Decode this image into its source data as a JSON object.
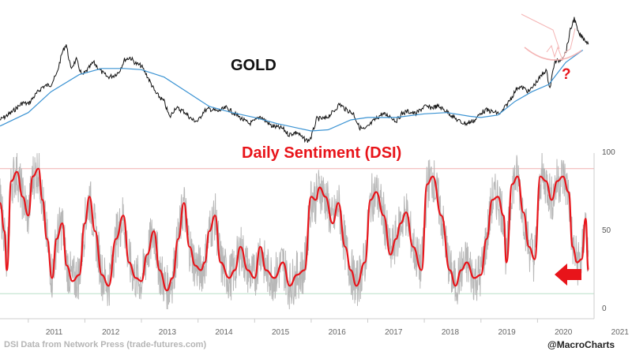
{
  "chart_data": [
    {
      "type": "line",
      "title": "GOLD",
      "x_range": [
        2010.5,
        2021.0
      ],
      "series": [
        {
          "x": [
            2010.5,
            2010.7,
            2010.9,
            2011.0,
            2011.1,
            2011.25,
            2011.4,
            2011.5,
            2011.6,
            2011.67,
            2011.75,
            2011.85,
            2011.95,
            2012.05,
            2012.15,
            2012.3,
            2012.4,
            2012.5,
            2012.6,
            2012.7,
            2012.8,
            2012.9,
            2013.0,
            2013.1,
            2013.25,
            2013.4,
            2013.5,
            2013.6,
            2013.75,
            2013.9,
            2014.0,
            2014.1,
            2014.2,
            2014.35,
            2014.5,
            2014.65,
            2014.8,
            2014.9,
            2015.0,
            2015.1,
            2015.3,
            2015.5,
            2015.6,
            2015.75,
            2015.85,
            2015.95,
            2016.0,
            2016.1,
            2016.25,
            2016.4,
            2016.5,
            2016.6,
            2016.75,
            2016.85,
            2016.95,
            2017.1,
            2017.25,
            2017.4,
            2017.5,
            2017.6,
            2017.7,
            2017.85,
            2018.0,
            2018.1,
            2018.25,
            2018.4,
            2018.55,
            2018.65,
            2018.75,
            2018.9,
            2019.0,
            2019.1,
            2019.25,
            2019.35,
            2019.45,
            2019.55,
            2019.65,
            2019.75,
            2019.85,
            2019.95,
            2020.05,
            2020.15,
            2020.22,
            2020.3,
            2020.4,
            2020.5,
            2020.58,
            2020.65,
            2020.72,
            2020.8,
            2020.85,
            2020.9
          ],
          "y": [
            1230,
            1290,
            1370,
            1360,
            1420,
            1500,
            1520,
            1600,
            1780,
            1850,
            1650,
            1720,
            1590,
            1640,
            1700,
            1620,
            1580,
            1590,
            1620,
            1720,
            1740,
            1690,
            1670,
            1590,
            1450,
            1380,
            1250,
            1330,
            1300,
            1230,
            1220,
            1300,
            1320,
            1300,
            1330,
            1280,
            1230,
            1200,
            1220,
            1260,
            1180,
            1160,
            1110,
            1130,
            1080,
            1060,
            1090,
            1240,
            1240,
            1300,
            1360,
            1320,
            1280,
            1170,
            1150,
            1220,
            1280,
            1260,
            1220,
            1280,
            1300,
            1280,
            1340,
            1330,
            1340,
            1300,
            1240,
            1210,
            1200,
            1230,
            1290,
            1310,
            1290,
            1280,
            1350,
            1420,
            1500,
            1490,
            1460,
            1520,
            1580,
            1640,
            1490,
            1700,
            1720,
            1780,
            1960,
            2060,
            1940,
            1900,
            1880,
            1850
          ]
        },
        {
          "name": "",
          "x": [
            2010.5,
            2011.0,
            2011.4,
            2011.9,
            2012.3,
            2012.7,
            2013.0,
            2013.4,
            2013.8,
            2014.2,
            2014.6,
            2015.0,
            2015.4,
            2015.8,
            2016.0,
            2016.3,
            2016.7,
            2017.0,
            2017.5,
            2018.0,
            2018.4,
            2018.8,
            2019.0,
            2019.3,
            2019.6,
            2019.9,
            2020.2,
            2020.5,
            2020.8
          ],
          "y": [
            1180,
            1290,
            1460,
            1600,
            1650,
            1650,
            1640,
            1580,
            1460,
            1340,
            1290,
            1250,
            1200,
            1160,
            1140,
            1150,
            1230,
            1250,
            1250,
            1280,
            1290,
            1260,
            1250,
            1270,
            1380,
            1460,
            1520,
            1700,
            1800
          ]
        }
      ]
    },
    {
      "type": "line",
      "title": "Daily Sentiment (DSI)",
      "x_range": [
        2010.5,
        2021.0
      ],
      "ylim": [
        0,
        100
      ],
      "yticks": [
        "100",
        "50",
        "0"
      ],
      "hlines": [
        90,
        10
      ],
      "xticks": [
        "2011",
        "2012",
        "2013",
        "2014",
        "2015",
        "2016",
        "2017",
        "2018",
        "2019",
        "2020",
        "2021"
      ],
      "series": [
        {
          "x": [
            2010.5,
            2010.58,
            2010.62,
            2010.7,
            2010.8,
            2010.9,
            2011.0,
            2011.08,
            2011.18,
            2011.25,
            2011.33,
            2011.42,
            2011.5,
            2011.6,
            2011.68,
            2011.78,
            2011.9,
            2012.0,
            2012.08,
            2012.18,
            2012.3,
            2012.42,
            2012.55,
            2012.68,
            2012.78,
            2012.9,
            2013.0,
            2013.1,
            2013.22,
            2013.32,
            2013.45,
            2013.55,
            2013.65,
            2013.75,
            2013.85,
            2013.95,
            2014.05,
            2014.12,
            2014.2,
            2014.3,
            2014.4,
            2014.55,
            2014.65,
            2014.75,
            2014.88,
            2015.0,
            2015.1,
            2015.2,
            2015.35,
            2015.5,
            2015.62,
            2015.75,
            2015.88,
            2016.0,
            2016.08,
            2016.15,
            2016.25,
            2016.38,
            2016.48,
            2016.6,
            2016.7,
            2016.8,
            2016.95,
            2017.05,
            2017.15,
            2017.28,
            2017.4,
            2017.5,
            2017.58,
            2017.68,
            2017.8,
            2017.95,
            2018.05,
            2018.15,
            2018.3,
            2018.45,
            2018.55,
            2018.65,
            2018.75,
            2018.88,
            2019.0,
            2019.1,
            2019.2,
            2019.3,
            2019.4,
            2019.45,
            2019.55,
            2019.65,
            2019.75,
            2019.85,
            2019.95,
            2020.05,
            2020.15,
            2020.25,
            2020.35,
            2020.45,
            2020.55,
            2020.62,
            2020.7,
            2020.78,
            2020.85,
            2020.9
          ],
          "y": [
            68,
            50,
            25,
            82,
            88,
            72,
            60,
            85,
            90,
            70,
            45,
            20,
            45,
            55,
            28,
            18,
            22,
            55,
            72,
            50,
            22,
            15,
            45,
            60,
            30,
            20,
            18,
            35,
            50,
            25,
            12,
            20,
            45,
            68,
            40,
            28,
            25,
            30,
            50,
            60,
            30,
            20,
            25,
            40,
            25,
            20,
            40,
            25,
            20,
            30,
            15,
            22,
            25,
            72,
            70,
            78,
            72,
            55,
            68,
            40,
            25,
            15,
            30,
            70,
            75,
            60,
            35,
            45,
            55,
            62,
            40,
            25,
            80,
            85,
            60,
            25,
            15,
            25,
            30,
            20,
            22,
            45,
            70,
            72,
            60,
            30,
            80,
            85,
            62,
            40,
            32,
            85,
            82,
            70,
            82,
            85,
            75,
            40,
            30,
            32,
            58,
            25
          ]
        }
      ]
    }
  ],
  "labels": {
    "gold_title": "GOLD",
    "question": "?",
    "dsi_title": "Daily Sentiment (DSI)",
    "source": "DSI Data from Network Press (trade-futures.com)",
    "credit": "@MacroCharts"
  },
  "colors": {
    "gold_price": "#111111",
    "gold_ma": "#3b93d3",
    "dsi_raw": "#b8b8b8",
    "dsi_smooth": "#e8141a",
    "hline_top": "#f0b0b0",
    "hline_bottom": "#b8e0c8",
    "arrow": "#e8141a",
    "projection": "#f4b4b4"
  }
}
